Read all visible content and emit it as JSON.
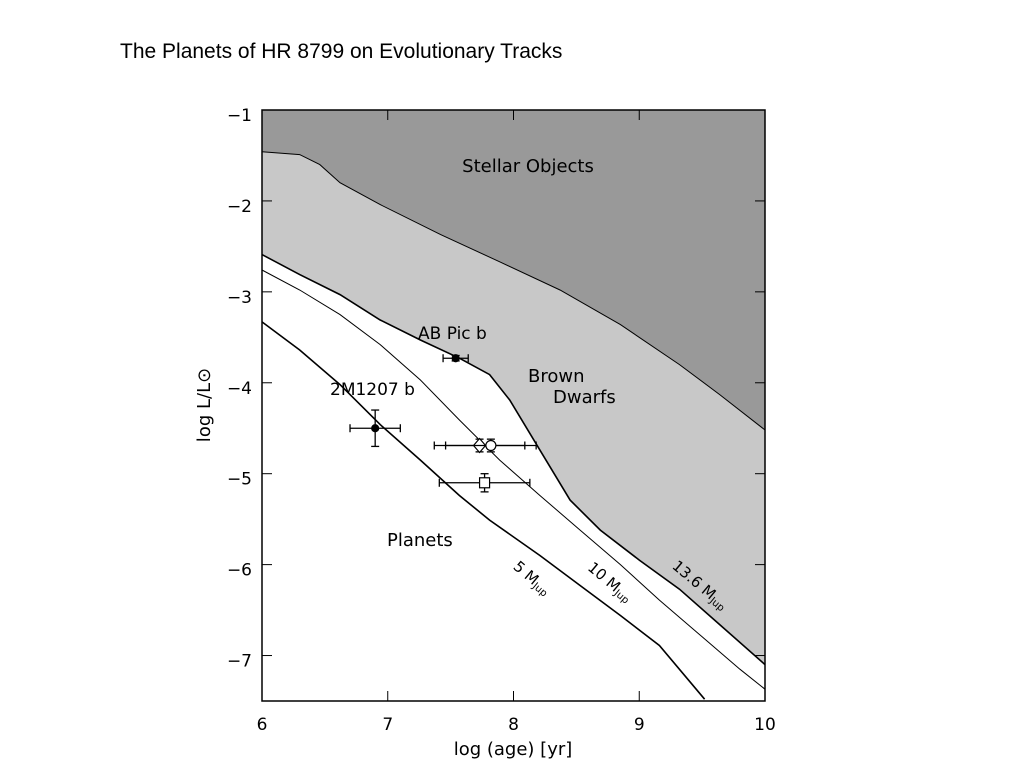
{
  "chart_data": {
    "type": "scatter",
    "title": "The Planets of HR 8799 on Evolutionary Tracks",
    "xlabel": "log (age) [yr]",
    "ylabel": "log L/L⊙",
    "xlim": [
      6,
      10
    ],
    "ylim": [
      -7.5,
      -1
    ],
    "xticks": [
      6,
      7,
      8,
      9,
      10
    ],
    "yticks": [
      {
        "value": -1,
        "label": "−1"
      },
      {
        "value": -2,
        "label": "−2"
      },
      {
        "value": -3,
        "label": "−3"
      },
      {
        "value": -4,
        "label": "−4"
      },
      {
        "value": -5,
        "label": "−5"
      },
      {
        "value": -6,
        "label": "−6"
      },
      {
        "value": -7,
        "label": "−7"
      }
    ],
    "regions": {
      "stellar": {
        "label": "Stellar Objects",
        "color": "#999999"
      },
      "brown_dwarf": {
        "label_lines": [
          "Brown",
          "Dwarfs"
        ],
        "color": "#c8c8c8"
      },
      "planet": {
        "label": "Planets",
        "color": "#ffffff"
      }
    },
    "stellar_boundary": {
      "x": [
        6,
        6.3,
        6.46,
        6.62,
        6.94,
        7.42,
        7.89,
        8.37,
        8.85,
        9.32,
        9.64,
        10
      ],
      "y": [
        -1.46,
        -1.49,
        -1.6,
        -1.8,
        -2.04,
        -2.37,
        -2.67,
        -2.98,
        -3.36,
        -3.8,
        -4.13,
        -4.52
      ]
    },
    "tracks": [
      {
        "label": "13.6 M",
        "label_sub": "Jup",
        "width": 1.6,
        "x": [
          6,
          6.3,
          6.62,
          6.94,
          7.26,
          7.57,
          7.81,
          7.97,
          8.21,
          8.45,
          8.69,
          9.0,
          9.32,
          9.64,
          10
        ],
        "y": [
          -2.59,
          -2.81,
          -3.03,
          -3.31,
          -3.53,
          -3.73,
          -3.91,
          -4.19,
          -4.74,
          -5.29,
          -5.62,
          -5.95,
          -6.27,
          -6.66,
          -7.1
        ]
      },
      {
        "label": "10 M",
        "label_sub": "Jup",
        "width": 1,
        "x": [
          6,
          6.3,
          6.62,
          6.94,
          7.26,
          7.57,
          7.89,
          8.21,
          8.53,
          8.85,
          9.16,
          9.48,
          9.8,
          10
        ],
        "y": [
          -2.76,
          -2.98,
          -3.25,
          -3.58,
          -3.97,
          -4.41,
          -4.85,
          -5.24,
          -5.62,
          -6.0,
          -6.39,
          -6.77,
          -7.15,
          -7.37
        ]
      },
      {
        "label": "5 M",
        "label_sub": "Jup",
        "width": 1.6,
        "x": [
          6,
          6.3,
          6.62,
          6.94,
          7.26,
          7.57,
          7.81,
          8.21,
          8.53,
          8.85,
          9.16,
          9.52
        ],
        "y": [
          -3.33,
          -3.64,
          -4.02,
          -4.46,
          -4.85,
          -5.24,
          -5.51,
          -5.9,
          -6.23,
          -6.56,
          -6.89,
          -7.48
        ]
      }
    ],
    "points": [
      {
        "label": "AB Pic b",
        "marker": "filled-circle",
        "x": 7.54,
        "y": -3.73,
        "xerr": 0.1,
        "yerr": 0.03
      },
      {
        "label": "2M1207 b",
        "marker": "filled-circle",
        "x": 6.9,
        "y": -4.5,
        "xerr": 0.2,
        "yerr": 0.2
      },
      {
        "marker": "diamond",
        "x": 7.73,
        "y": -4.69,
        "xerr": 0.36,
        "yerr": 0.07
      },
      {
        "marker": "open-circle",
        "x": 7.82,
        "y": -4.69,
        "xerr": 0.36,
        "yerr": 0.07
      },
      {
        "marker": "square",
        "x": 7.77,
        "y": -5.1,
        "xerr": 0.36,
        "yerr": 0.1
      }
    ]
  }
}
